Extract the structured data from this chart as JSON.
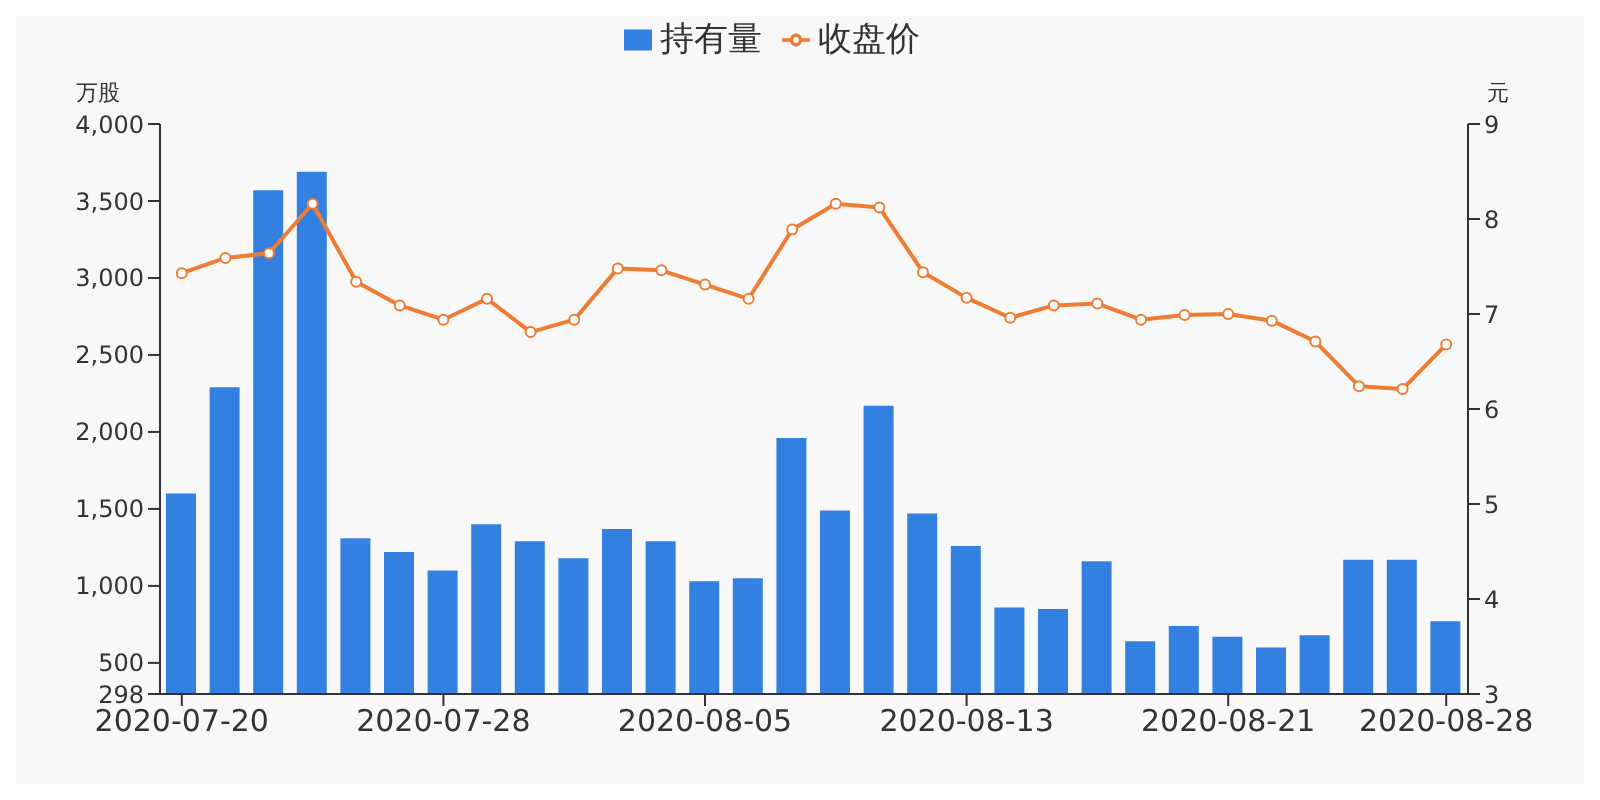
{
  "chart_data": {
    "type": "bar",
    "ylabel": "万股",
    "y2label": "元",
    "legend": "top",
    "categories": [
      "2020-07-20",
      null,
      null,
      null,
      null,
      null,
      "2020-07-28",
      null,
      null,
      null,
      null,
      null,
      "2020-08-05",
      null,
      null,
      null,
      null,
      null,
      "2020-08-13",
      null,
      null,
      null,
      null,
      null,
      "2020-08-21",
      null,
      null,
      null,
      null,
      "2020-08-28"
    ],
    "series": [
      {
        "name": "持有量",
        "color": "#3380e0",
        "values": [
          1600,
          2290,
          3570,
          3690,
          1310,
          1220,
          1100,
          1400,
          1290,
          1180,
          1370,
          1290,
          1030,
          1050,
          1960,
          1490,
          2170,
          1470,
          1260,
          860,
          850,
          1160,
          640,
          740,
          670,
          600,
          680,
          1170,
          1170,
          770
        ]
      },
      {
        "name": "收盘价",
        "type": "line",
        "axis": "y2",
        "color": "#ee7d33",
        "marker": "circle",
        "values": [
          7.43,
          7.59,
          7.64,
          8.16,
          7.34,
          7.09,
          6.94,
          7.16,
          6.81,
          6.94,
          7.48,
          7.46,
          7.31,
          7.16,
          7.89,
          8.16,
          8.12,
          7.44,
          7.17,
          6.96,
          7.09,
          7.11,
          6.94,
          6.99,
          7.0,
          6.93,
          6.71,
          6.24,
          6.21,
          6.68
        ]
      }
    ],
    "ylim": [
      298,
      4000
    ],
    "yticks": [
      298,
      500,
      {
        "value": 1000,
        "label": "1,000"
      },
      {
        "value": 1500,
        "label": "1,500"
      },
      {
        "value": 2000,
        "label": "2,000"
      },
      {
        "value": 2500,
        "label": "2,500"
      },
      {
        "value": 3000,
        "label": "3,000"
      },
      {
        "value": 3500,
        "label": "3,500"
      },
      {
        "value": 4000,
        "label": "4,000"
      }
    ],
    "y2lim": [
      3,
      9
    ],
    "y2ticks": [
      3,
      4,
      5,
      6,
      7,
      8,
      9
    ],
    "grid": false
  }
}
